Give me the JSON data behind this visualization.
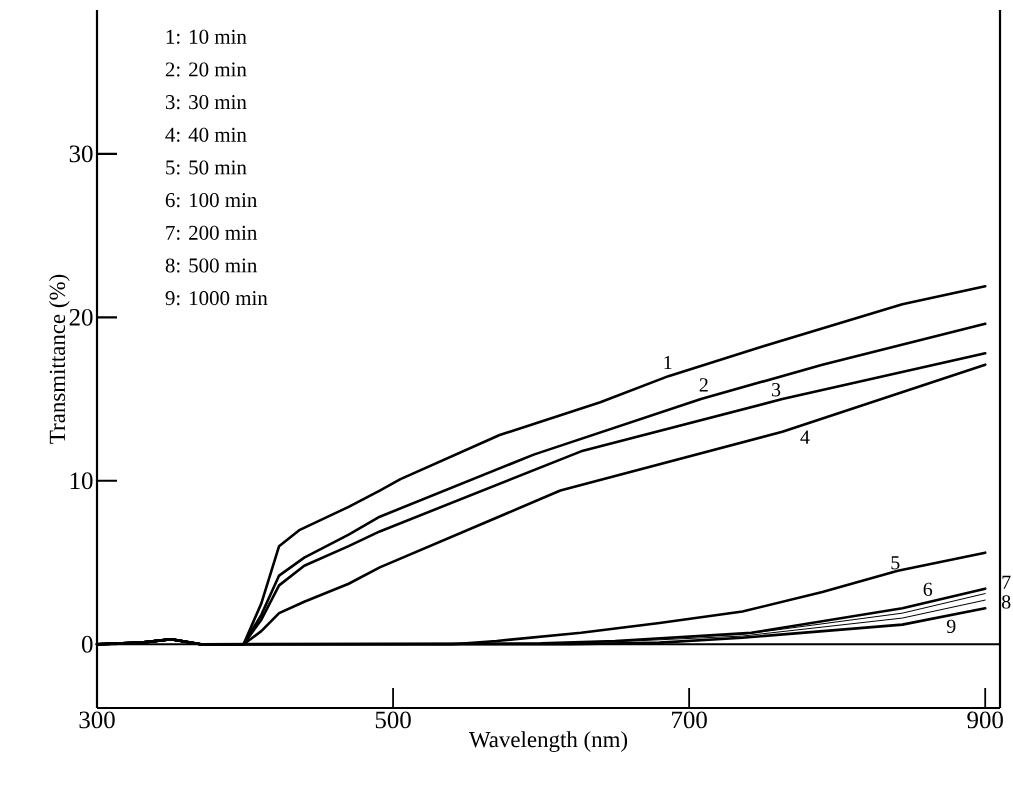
{
  "chart_data": {
    "type": "line",
    "xlabel": "Wavelength (nm)",
    "ylabel": "Transmittance (%)",
    "xlim": [
      300,
      910
    ],
    "ylim": [
      -3.9,
      38.8
    ],
    "xticks": [
      300,
      500,
      700,
      900
    ],
    "yticks": [
      0,
      10,
      20,
      30
    ],
    "grid": false,
    "marker": "none",
    "line_style": "solid",
    "ref_lines": [
      {
        "axis": "y",
        "value": 0,
        "color": "#000000"
      }
    ],
    "series": [
      {
        "color": "#000000",
        "x": [
          300,
          330,
          350,
          370,
          399,
          411,
          423,
          437,
          470,
          491,
          505,
          572,
          640,
          686,
          749,
          844,
          900
        ],
        "values": [
          0,
          0.1,
          0.3,
          0,
          0,
          2.5,
          6.0,
          7.0,
          8.4,
          9.4,
          10.1,
          12.8,
          14.8,
          16.4,
          18.2,
          20.8,
          21.9
        ]
      },
      {
        "color": "#000000",
        "x": [
          300,
          330,
          350,
          370,
          399,
          411,
          423,
          440,
          470,
          491,
          595,
          708,
          790,
          900
        ],
        "values": [
          0,
          0.1,
          0.3,
          0,
          0,
          1.8,
          4.2,
          5.3,
          6.7,
          7.8,
          11.6,
          15.0,
          17.1,
          19.6
        ]
      },
      {
        "color": "#000000",
        "x": [
          300,
          330,
          350,
          370,
          399,
          411,
          423,
          440,
          470,
          491,
          627,
          763,
          900
        ],
        "values": [
          0,
          0.1,
          0.3,
          0,
          0,
          1.5,
          3.6,
          4.8,
          6.0,
          6.9,
          11.8,
          15.0,
          17.8
        ]
      },
      {
        "color": "#000000",
        "x": [
          300,
          330,
          350,
          370,
          399,
          411,
          423,
          440,
          470,
          491,
          613,
          763,
          900
        ],
        "values": [
          0,
          0.1,
          0.3,
          0,
          0,
          0.8,
          1.9,
          2.6,
          3.7,
          4.7,
          9.4,
          13.0,
          17.1
        ]
      },
      {
        "color": "#000000",
        "x": [
          300,
          330,
          350,
          370,
          540,
          570,
          627,
          680,
          736,
          790,
          841,
          900
        ],
        "values": [
          0,
          0.1,
          0.3,
          0,
          0,
          0.2,
          0.7,
          1.3,
          2.0,
          3.2,
          4.5,
          5.6
        ]
      },
      {
        "color": "#000000",
        "x": [
          300,
          330,
          350,
          370,
          600,
          650,
          742,
          844,
          900
        ],
        "values": [
          0,
          0.1,
          0.3,
          0,
          0.05,
          0.2,
          0.7,
          2.2,
          3.4
        ]
      },
      {
        "color": "#000000",
        "x": [
          300,
          330,
          350,
          370,
          600,
          650,
          736,
          844,
          900
        ],
        "values": [
          0,
          0.1,
          0.3,
          0,
          0.05,
          0.2,
          0.6,
          1.9,
          3.1
        ]
      },
      {
        "color": "#000000",
        "x": [
          300,
          330,
          350,
          370,
          600,
          650,
          736,
          844,
          900
        ],
        "values": [
          0,
          0.1,
          0.3,
          0,
          0.05,
          0.15,
          0.5,
          1.6,
          2.7
        ]
      },
      {
        "color": "#000000",
        "x": [
          300,
          330,
          350,
          370,
          620,
          680,
          736,
          844,
          900
        ],
        "values": [
          0,
          0.1,
          0.3,
          0,
          0,
          0.1,
          0.4,
          1.2,
          2.2
        ]
      }
    ],
    "annotations": [
      "1: 10 min",
      "2: 20 min",
      "3: 30 min",
      "4: 40 min",
      "5: 50 min",
      "6: 100 min",
      "7: 200 min",
      "8: 500 min",
      "9: 1000 min",
      "1",
      "2",
      "3",
      "4",
      "5",
      "6",
      "7",
      "8",
      "9"
    ]
  }
}
